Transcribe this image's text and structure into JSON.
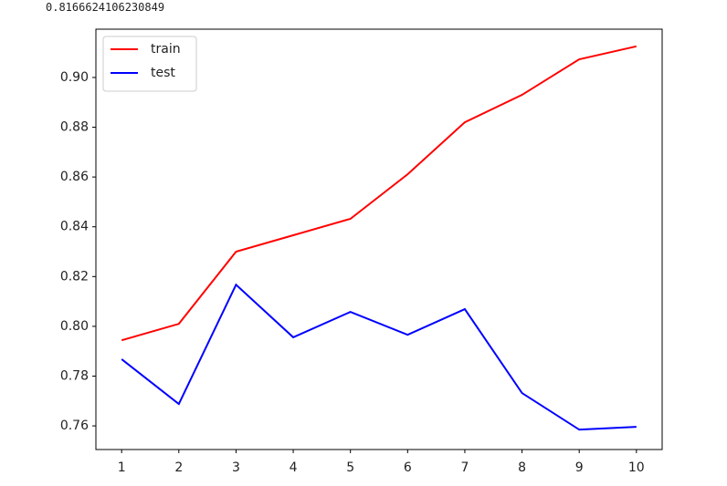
{
  "output_text": "0.8166624106230849",
  "chart_data": {
    "type": "line",
    "x": [
      1,
      2,
      3,
      4,
      5,
      6,
      7,
      8,
      9,
      10
    ],
    "series": [
      {
        "name": "train",
        "color": "#ff0000",
        "values": [
          0.7944,
          0.801,
          0.83,
          0.8366,
          0.8432,
          0.8611,
          0.882,
          0.893,
          0.9073,
          0.9125
        ]
      },
      {
        "name": "test",
        "color": "#0000ff",
        "values": [
          0.7868,
          0.7688,
          0.8167,
          0.7956,
          0.8058,
          0.7966,
          0.8069,
          0.7732,
          0.7585,
          0.7596
        ]
      }
    ],
    "xlim": [
      0.55,
      10.45
    ],
    "xticks": [
      1,
      2,
      3,
      4,
      5,
      6,
      7,
      8,
      9,
      10
    ],
    "ylim": [
      0.7505,
      0.9194
    ],
    "yticks": [
      0.76,
      0.78,
      {
        "value": 0.8,
        "label": "0.80"
      },
      0.82,
      0.84,
      0.86,
      0.88,
      {
        "value": 0.9,
        "label": "0.90"
      }
    ],
    "legend": "upper left",
    "grid": false
  }
}
